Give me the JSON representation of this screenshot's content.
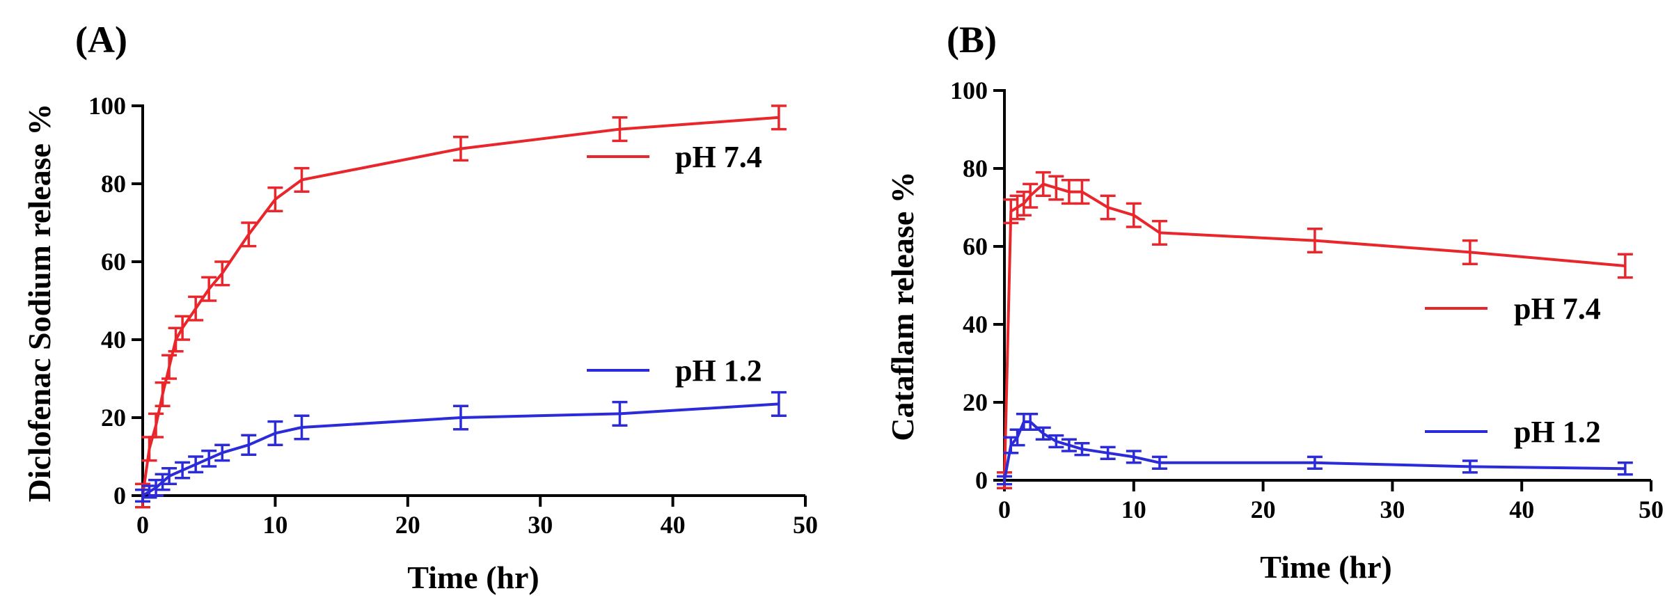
{
  "colors": {
    "ph74": "#e8262b",
    "ph12": "#2b2bd9",
    "axis": "#000000"
  },
  "chart_data": [
    {
      "type": "line",
      "panel_label": "(A)",
      "title": "",
      "xlabel": "Time (hr)",
      "ylabel": "Diclofenac Sodium release %",
      "xlim": [
        0,
        50
      ],
      "ylim": [
        0,
        100
      ],
      "xticks": [
        "0",
        "10",
        "20",
        "30",
        "40",
        "50"
      ],
      "yticks": [
        "0",
        "20",
        "40",
        "60",
        "80",
        "100"
      ],
      "legend_position": "right",
      "series": [
        {
          "name": "pH 7.4",
          "color_key": "ph74",
          "x": [
            0,
            0.5,
            1,
            1.5,
            2,
            2.5,
            3,
            4,
            5,
            6,
            8,
            10,
            12,
            24,
            36,
            48
          ],
          "y": [
            0,
            12,
            18,
            26,
            33,
            40,
            43,
            48,
            53,
            57,
            67,
            76,
            81,
            89,
            94,
            97
          ],
          "err": [
            3,
            3,
            3,
            3,
            3,
            3,
            3,
            3,
            3,
            3,
            3,
            3,
            3,
            3,
            3,
            3
          ]
        },
        {
          "name": "pH 1.2",
          "color_key": "ph12",
          "x": [
            0,
            0.5,
            1,
            1.5,
            2,
            3,
            4,
            5,
            6,
            8,
            10,
            12,
            24,
            36,
            48
          ],
          "y": [
            0,
            1,
            2,
            3.5,
            5,
            6.5,
            8,
            9.5,
            11,
            13,
            16,
            17.5,
            20,
            21,
            23.5
          ],
          "err": [
            1.5,
            1.5,
            2,
            2,
            2,
            2,
            2,
            2,
            2,
            2.5,
            3,
            3,
            3,
            3,
            3
          ]
        }
      ]
    },
    {
      "type": "line",
      "panel_label": "(B)",
      "title": "",
      "xlabel": "Time (hr)",
      "ylabel": "Cataflam release %",
      "xlim": [
        0,
        50
      ],
      "ylim": [
        0,
        100
      ],
      "xticks": [
        "0",
        "10",
        "20",
        "30",
        "40",
        "50"
      ],
      "yticks": [
        "0",
        "20",
        "40",
        "60",
        "80",
        "100"
      ],
      "legend_position": "right",
      "series": [
        {
          "name": "pH 7.4",
          "color_key": "ph74",
          "x": [
            0,
            0.5,
            1,
            1.5,
            2,
            3,
            4,
            5,
            6,
            8,
            10,
            12,
            24,
            36,
            48
          ],
          "y": [
            0,
            69,
            70,
            71,
            73,
            76,
            75,
            74,
            74,
            70,
            68,
            63.5,
            61.5,
            58.5,
            55
          ],
          "err": [
            2,
            3,
            3,
            3,
            3,
            3,
            3,
            3,
            3,
            3,
            3,
            3,
            3,
            3,
            3
          ]
        },
        {
          "name": "pH 1.2",
          "color_key": "ph12",
          "x": [
            0,
            0.5,
            1,
            1.5,
            2,
            3,
            4,
            5,
            6,
            8,
            10,
            12,
            24,
            36,
            48
          ],
          "y": [
            0,
            9,
            11,
            15,
            15,
            12,
            10,
            9,
            8,
            7,
            6,
            4.5,
            4.5,
            3.5,
            3
          ],
          "err": [
            1,
            2,
            2,
            2,
            2,
            1.5,
            1.5,
            1.5,
            1.5,
            1.5,
            1.5,
            1.5,
            1.5,
            1.5,
            1.5
          ]
        }
      ]
    }
  ]
}
